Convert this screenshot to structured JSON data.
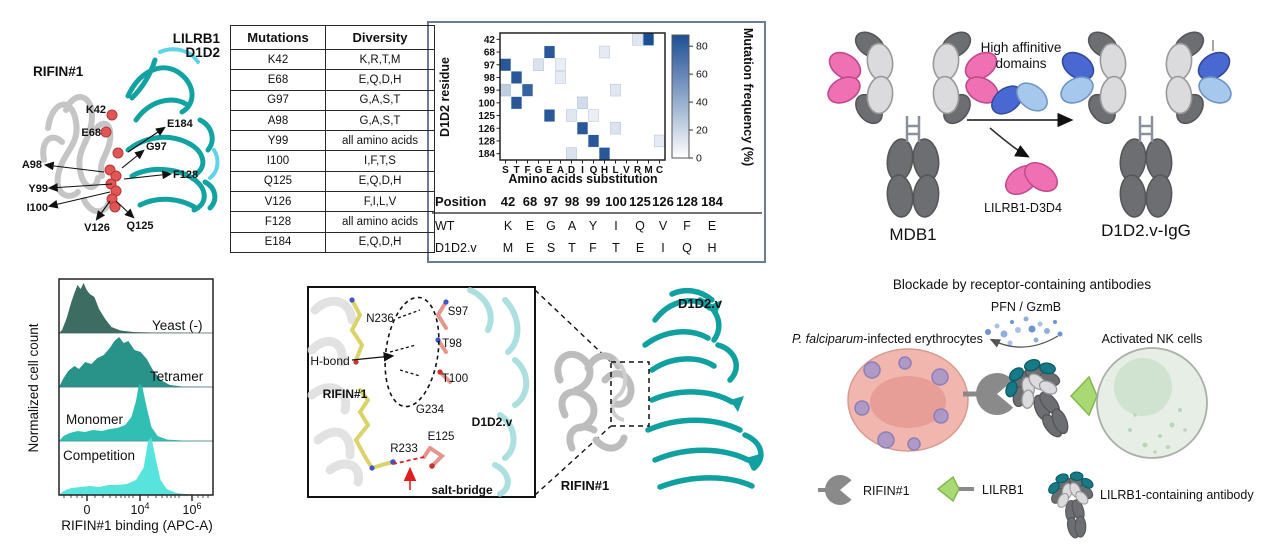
{
  "colors": {
    "teal": "#12a2a2",
    "light_teal": "#8ad2d2",
    "cyan_label": "#3cc7ea",
    "gray_label": "#8f8f8f",
    "ribbon_gray": "#c2c2c2",
    "sphere_red": "#e35555",
    "heat_blue": "#1c4e94",
    "panel_border": "#6e7b94",
    "pink": "#f070b4",
    "dark_blue": "#4a68d2",
    "light_blue": "#a6c8ec",
    "ab_dark_gray": "#6d6e71",
    "ab_light_gray": "#dbdbdd",
    "salt_red": "#e02020",
    "wedge_green": "#a8d973",
    "erythrocyte_pink": "#f1b6ae",
    "nk_green": "#e6eee6",
    "antibody_teal": "#157a86"
  },
  "structure_panel": {
    "lilrb1_label": "LILRB1",
    "d1d2_label": "D1D2",
    "rifin_label": "RIFIN#1",
    "residues": [
      "K42",
      "E68",
      "E184",
      "G97",
      "A98",
      "F128",
      "Y99",
      "I100",
      "V126",
      "Q125"
    ]
  },
  "mutations_table": {
    "headers": [
      "Mutations",
      "Diversity"
    ],
    "rows": [
      [
        "K42",
        "K,R,T,M"
      ],
      [
        "E68",
        "E,Q,D,H"
      ],
      [
        "G97",
        "G,A,S,T"
      ],
      [
        "A98",
        "G,A,S,T"
      ],
      [
        "Y99",
        "all amino acids"
      ],
      [
        "I100",
        "I,F,T,S"
      ],
      [
        "Q125",
        "E,Q,D,H"
      ],
      [
        "V126",
        "F,I,L,V"
      ],
      [
        "F128",
        "all amino acids"
      ],
      [
        "E184",
        "E,Q,D,H"
      ]
    ]
  },
  "chart_data": [
    {
      "type": "heatmap",
      "xlabel": "Amino acids substitution",
      "ylabel": "D1D2 residue",
      "x_categories": [
        "S",
        "T",
        "F",
        "G",
        "E",
        "A",
        "D",
        "I",
        "Q",
        "H",
        "L",
        "V",
        "R",
        "M",
        "C"
      ],
      "y_categories": [
        "42",
        "68",
        "97",
        "98",
        "99",
        "100",
        "125",
        "126",
        "128",
        "184"
      ],
      "colorbar_label": "Mutation frequency (%)",
      "colorbar_ticks": [
        0,
        20,
        40,
        60,
        80
      ],
      "value_range": [
        0,
        90
      ],
      "cells": [
        {
          "y": "42",
          "x": "R",
          "value": 12
        },
        {
          "y": "42",
          "x": "M",
          "value": 90
        },
        {
          "y": "68",
          "x": "E",
          "value": 85
        },
        {
          "y": "68",
          "x": "H",
          "value": 10
        },
        {
          "y": "97",
          "x": "S",
          "value": 85
        },
        {
          "y": "97",
          "x": "G",
          "value": 14
        },
        {
          "y": "97",
          "x": "A",
          "value": 8
        },
        {
          "y": "98",
          "x": "T",
          "value": 85
        },
        {
          "y": "98",
          "x": "A",
          "value": 10
        },
        {
          "y": "99",
          "x": "S",
          "value": 25
        },
        {
          "y": "99",
          "x": "F",
          "value": 80
        },
        {
          "y": "99",
          "x": "L",
          "value": 12
        },
        {
          "y": "100",
          "x": "T",
          "value": 85
        },
        {
          "y": "100",
          "x": "I",
          "value": 18
        },
        {
          "y": "125",
          "x": "D",
          "value": 12
        },
        {
          "y": "125",
          "x": "E",
          "value": 85
        },
        {
          "y": "125",
          "x": "Q",
          "value": 8
        },
        {
          "y": "126",
          "x": "I",
          "value": 85
        },
        {
          "y": "126",
          "x": "L",
          "value": 14
        },
        {
          "y": "128",
          "x": "Q",
          "value": 85
        },
        {
          "y": "128",
          "x": "C",
          "value": 10
        },
        {
          "y": "184",
          "x": "D",
          "value": 15
        },
        {
          "y": "184",
          "x": "H",
          "value": 85
        }
      ]
    },
    {
      "type": "area",
      "subtype": "flow-cytometry-ridge",
      "xlabel": "RIFIN#1 binding (APC-A)",
      "ylabel": "Normalized cell count",
      "x_ticks": [
        {
          "base": "0",
          "exp": ""
        },
        {
          "base": "10",
          "exp": "4"
        },
        {
          "base": "10",
          "exp": "6"
        }
      ],
      "series": [
        {
          "name": "Yeast (-)",
          "color": "#2c5f55",
          "points": [
            [
              0,
              0
            ],
            [
              0.02,
              0.06
            ],
            [
              0.05,
              0.3
            ],
            [
              0.08,
              0.62
            ],
            [
              0.1,
              0.8
            ],
            [
              0.12,
              0.96
            ],
            [
              0.14,
              0.88
            ],
            [
              0.16,
              1
            ],
            [
              0.18,
              0.86
            ],
            [
              0.2,
              0.78
            ],
            [
              0.23,
              0.72
            ],
            [
              0.26,
              0.48
            ],
            [
              0.3,
              0.28
            ],
            [
              0.34,
              0.12
            ],
            [
              0.4,
              0.05
            ],
            [
              0.48,
              0.02
            ],
            [
              0.6,
              0.01
            ],
            [
              1,
              0
            ]
          ]
        },
        {
          "name": "Tetramer",
          "color": "#178a80",
          "points": [
            [
              0,
              0
            ],
            [
              0.03,
              0.18
            ],
            [
              0.06,
              0.32
            ],
            [
              0.1,
              0.42
            ],
            [
              0.13,
              0.36
            ],
            [
              0.17,
              0.5
            ],
            [
              0.21,
              0.46
            ],
            [
              0.25,
              0.58
            ],
            [
              0.29,
              0.64
            ],
            [
              0.33,
              0.78
            ],
            [
              0.36,
              0.92
            ],
            [
              0.39,
              1
            ],
            [
              0.42,
              0.88
            ],
            [
              0.45,
              0.92
            ],
            [
              0.49,
              0.74
            ],
            [
              0.53,
              0.7
            ],
            [
              0.57,
              0.56
            ],
            [
              0.61,
              0.34
            ],
            [
              0.66,
              0.14
            ],
            [
              0.72,
              0.04
            ],
            [
              0.8,
              0.01
            ],
            [
              1,
              0
            ]
          ]
        },
        {
          "name": "Monomer",
          "color": "#20b9ad",
          "points": [
            [
              0,
              0
            ],
            [
              0.03,
              0.1
            ],
            [
              0.07,
              0.16
            ],
            [
              0.12,
              0.2
            ],
            [
              0.17,
              0.18
            ],
            [
              0.22,
              0.22
            ],
            [
              0.28,
              0.2
            ],
            [
              0.33,
              0.24
            ],
            [
              0.38,
              0.26
            ],
            [
              0.43,
              0.32
            ],
            [
              0.47,
              0.48
            ],
            [
              0.5,
              0.8
            ],
            [
              0.52,
              1.15
            ],
            [
              0.54,
              1.1
            ],
            [
              0.57,
              0.66
            ],
            [
              0.6,
              0.28
            ],
            [
              0.64,
              0.1
            ],
            [
              0.7,
              0.03
            ],
            [
              0.8,
              0.01
            ],
            [
              1,
              0
            ]
          ]
        },
        {
          "name": "Competition",
          "color": "#49e2da",
          "points": [
            [
              0,
              0
            ],
            [
              0.03,
              0.08
            ],
            [
              0.08,
              0.14
            ],
            [
              0.14,
              0.16
            ],
            [
              0.2,
              0.18
            ],
            [
              0.26,
              0.16
            ],
            [
              0.32,
              0.2
            ],
            [
              0.38,
              0.2
            ],
            [
              0.44,
              0.22
            ],
            [
              0.5,
              0.3
            ],
            [
              0.55,
              0.55
            ],
            [
              0.58,
              1.1
            ],
            [
              0.6,
              1.15
            ],
            [
              0.63,
              0.7
            ],
            [
              0.66,
              0.3
            ],
            [
              0.7,
              0.12
            ],
            [
              0.76,
              0.04
            ],
            [
              0.85,
              0.01
            ],
            [
              1,
              0
            ]
          ]
        }
      ]
    }
  ],
  "variant_table": {
    "position_label": "Position",
    "positions": [
      "42",
      "68",
      "97",
      "98",
      "99",
      "100",
      "125",
      "126",
      "128",
      "184"
    ],
    "rows": [
      {
        "label": "WT",
        "values": [
          "K",
          "E",
          "G",
          "A",
          "Y",
          "I",
          "Q",
          "V",
          "F",
          "E"
        ]
      },
      {
        "label": "D1D2.v",
        "values": [
          "M",
          "E",
          "S",
          "T",
          "F",
          "T",
          "E",
          "I",
          "Q",
          "H"
        ]
      }
    ]
  },
  "antibody_panel": {
    "mdb1_label": "MDB1",
    "igg_label": "D1D2.v-IgG",
    "arrow_label_line1": "High affinitive",
    "arrow_label_line2": "domains",
    "d3d4_label": "LILRB1-D3D4"
  },
  "interface_panel": {
    "residues": [
      "N236",
      "S97",
      "T98",
      "T100",
      "G234",
      "R233",
      "E125"
    ],
    "hbond_label": "H-bond",
    "salt_label": "salt-bridge",
    "rifin_label": "RIFIN#1",
    "d1d2v_label": "D1D2.v"
  },
  "complex_panel": {
    "d1d2v_label": "D1D2.v",
    "rifin_label": "RIFIN#1"
  },
  "schematic": {
    "title": "Blockade by receptor-containing antibodies",
    "pfn_label": "PFN / GzmB",
    "erythrocyte_italic": "P. falciparum",
    "erythrocyte_rest": "-infected erythrocytes",
    "nk_label": "Activated NK cells",
    "legend": [
      {
        "label": "RIFIN#1"
      },
      {
        "label": "LILRB1"
      },
      {
        "label": "LILRB1-containing antibody"
      }
    ]
  }
}
